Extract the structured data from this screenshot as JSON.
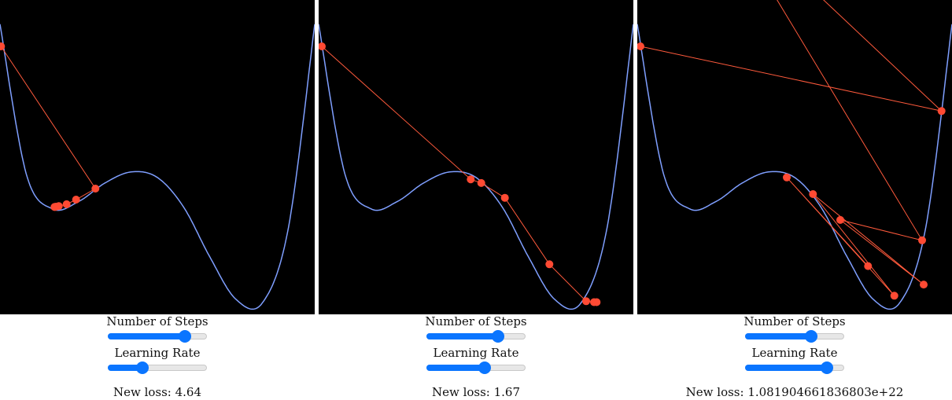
{
  "panels": [
    {
      "steps_label": "Number of Steps",
      "lr_label": "Learning Rate",
      "loss_prefix": "New loss: ",
      "loss_value": "4.64",
      "steps_fraction": 0.82,
      "lr_fraction": 0.33
    },
    {
      "steps_label": "Number of Steps",
      "lr_label": "Learning Rate",
      "loss_prefix": "New loss: ",
      "loss_value": "1.67",
      "steps_fraction": 0.75,
      "lr_fraction": 0.6
    },
    {
      "steps_label": "Number of Steps",
      "lr_label": "Learning Rate",
      "loss_prefix": "New loss: ",
      "loss_value": "1.081904661836803e+22",
      "steps_fraction": 0.69,
      "lr_fraction": 0.87
    }
  ],
  "colors": {
    "plot_background": "#000000",
    "curve": "#7f9fff",
    "path": "#ff5a3c",
    "point": "#ff4a33",
    "slider_accent": "#0a75ff"
  },
  "chart_data": [
    {
      "type": "line",
      "x": [
        -3.0,
        -2.5,
        -2.0,
        -1.5,
        -1.0,
        -0.5,
        0.0,
        0.5,
        1.0,
        1.5,
        2.0,
        2.5,
        3.0
      ],
      "series": [
        {
          "values": [
            15.2,
            7.1,
            5.2,
            5.6,
            6.6,
            7.2,
            6.9,
            5.3,
            2.6,
            0.3,
            0.1,
            4.2,
            15.2
          ]
        }
      ],
      "gd_path": [
        [
          -2.98,
          14.0
        ],
        [
          -1.18,
          6.3
        ],
        [
          -1.55,
          5.7
        ],
        [
          -1.73,
          5.45
        ],
        [
          -1.88,
          5.35
        ],
        [
          -1.93,
          5.32
        ],
        [
          -1.95,
          5.31
        ],
        [
          -1.96,
          5.3
        ]
      ]
    },
    {
      "type": "line",
      "x": [
        -3.0,
        -2.5,
        -2.0,
        -1.5,
        -1.0,
        -0.5,
        0.0,
        0.5,
        1.0,
        1.5,
        2.0,
        2.5,
        3.0
      ],
      "series": [
        {
          "values": [
            15.2,
            7.1,
            5.2,
            5.6,
            6.6,
            7.2,
            6.9,
            5.3,
            2.6,
            0.3,
            0.1,
            4.2,
            15.2
          ]
        }
      ],
      "gd_path": [
        [
          -2.94,
          14.0
        ],
        [
          -0.1,
          6.8
        ],
        [
          0.1,
          6.6
        ],
        [
          0.55,
          5.8
        ],
        [
          1.4,
          2.2
        ],
        [
          2.1,
          0.2
        ],
        [
          2.25,
          0.15
        ],
        [
          2.3,
          0.15
        ]
      ]
    },
    {
      "type": "line",
      "x": [
        -3.0,
        -2.5,
        -2.0,
        -1.5,
        -1.0,
        -0.5,
        0.0,
        0.5,
        1.0,
        1.5,
        2.0,
        2.5,
        3.0
      ],
      "series": [
        {
          "values": [
            15.2,
            7.1,
            5.2,
            5.6,
            6.6,
            7.2,
            6.9,
            5.3,
            2.6,
            0.3,
            0.1,
            4.2,
            15.2
          ]
        }
      ],
      "gd_path": [
        [
          -2.94,
          14.0
        ],
        [
          2.8,
          10.5
        ],
        [
          -1.5,
          22.0
        ],
        [
          2.43,
          3.5
        ],
        [
          0.87,
          4.6
        ],
        [
          2.46,
          1.1
        ],
        [
          0.35,
          6.0
        ],
        [
          1.9,
          0.5
        ],
        [
          -0.15,
          6.9
        ],
        [
          1.4,
          2.1
        ]
      ]
    }
  ]
}
